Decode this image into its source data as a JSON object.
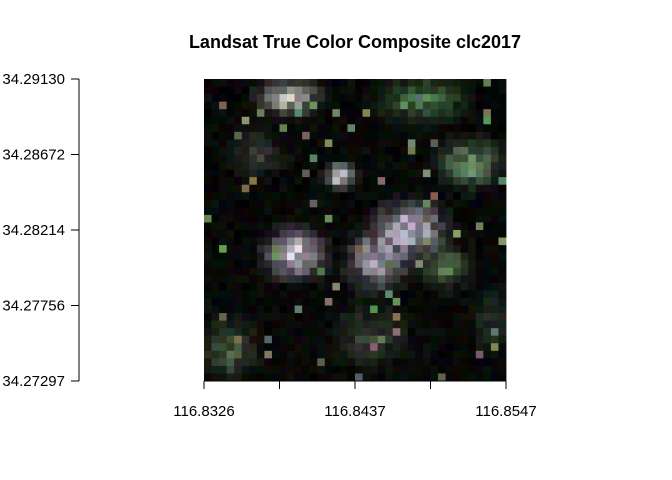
{
  "chart_data": {
    "type": "heatmap",
    "title": "Landsat True Color Composite clc2017",
    "xlabel": "",
    "ylabel": "",
    "x_ticks": [
      "116.8326",
      "116.8437",
      "116.8547"
    ],
    "y_ticks": [
      "34.29130",
      "34.28672",
      "34.28214",
      "34.27756",
      "34.27297"
    ],
    "x_range": [
      116.8326,
      116.8547
    ],
    "y_range": [
      34.27297,
      34.2913
    ],
    "grid": false,
    "legend": "none",
    "raster": {
      "cols": 40,
      "rows": 40,
      "base_color": "#000000",
      "patches": [
        {
          "cx": 0.3,
          "cy": 0.58,
          "rx": 0.1,
          "ry": 0.08,
          "color": "#e8dcee"
        },
        {
          "cx": 0.68,
          "cy": 0.5,
          "rx": 0.12,
          "ry": 0.09,
          "color": "#d9d2ea"
        },
        {
          "cx": 0.58,
          "cy": 0.6,
          "rx": 0.1,
          "ry": 0.1,
          "color": "#b7b2c4"
        },
        {
          "cx": 0.28,
          "cy": 0.06,
          "rx": 0.1,
          "ry": 0.06,
          "color": "#c8c8c0"
        },
        {
          "cx": 0.88,
          "cy": 0.28,
          "rx": 0.1,
          "ry": 0.08,
          "color": "#7ea67a"
        },
        {
          "cx": 0.72,
          "cy": 0.07,
          "rx": 0.14,
          "ry": 0.07,
          "color": "#4f7d4c"
        },
        {
          "cx": 0.8,
          "cy": 0.62,
          "rx": 0.08,
          "ry": 0.07,
          "color": "#5a7a52"
        },
        {
          "cx": 0.45,
          "cy": 0.32,
          "rx": 0.05,
          "ry": 0.04,
          "color": "#eeeef2"
        },
        {
          "cx": 0.08,
          "cy": 0.9,
          "rx": 0.1,
          "ry": 0.1,
          "color": "#4a5a44"
        },
        {
          "cx": 0.55,
          "cy": 0.85,
          "rx": 0.12,
          "ry": 0.1,
          "color": "#3c4a38"
        },
        {
          "cx": 0.18,
          "cy": 0.25,
          "rx": 0.08,
          "ry": 0.08,
          "color": "#3a4238"
        },
        {
          "cx": 0.95,
          "cy": 0.8,
          "rx": 0.06,
          "ry": 0.1,
          "color": "#2e3a2c"
        }
      ]
    }
  }
}
